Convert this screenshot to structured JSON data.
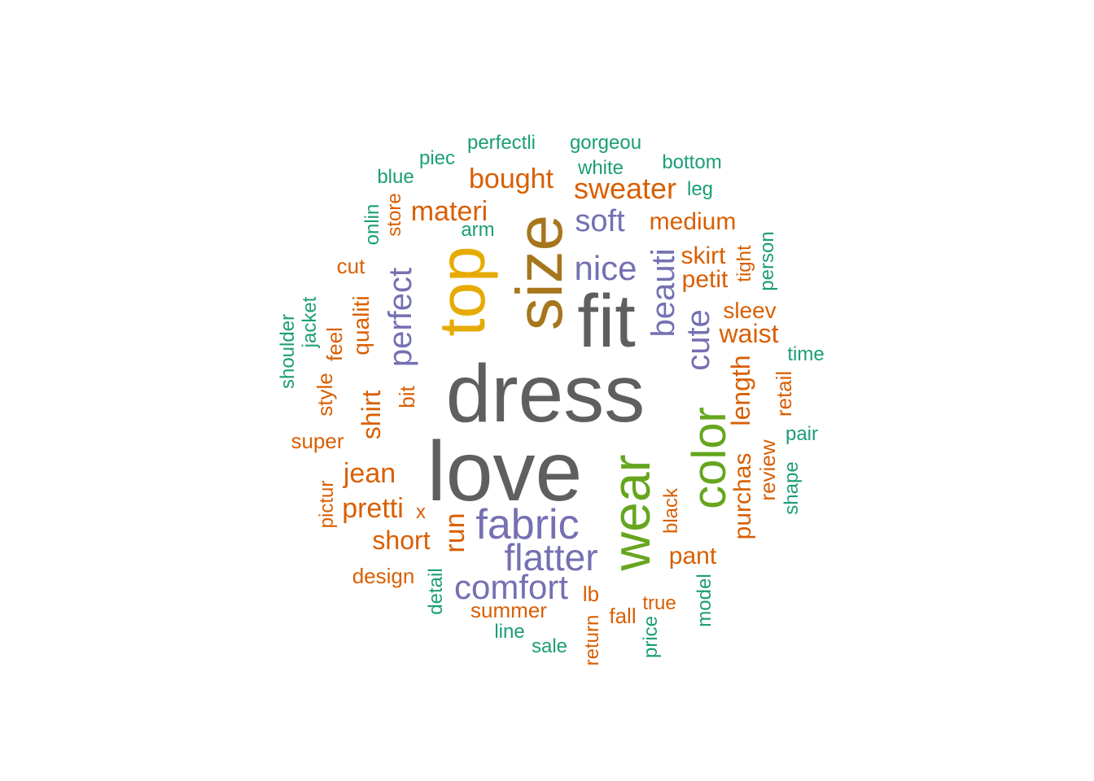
{
  "palette": {
    "gray": "#5f5f5f",
    "teal": "#1b9e77",
    "orange": "#d95f02",
    "purple": "#7570b3",
    "green": "#66a61e",
    "gold": "#e6ab02",
    "brown": "#a6761d"
  },
  "words": [
    {
      "text": "dress",
      "color": "gray"
    },
    {
      "text": "love",
      "color": "gray"
    },
    {
      "text": "fit",
      "color": "gray"
    },
    {
      "text": "size",
      "color": "brown"
    },
    {
      "text": "top",
      "color": "gold"
    },
    {
      "text": "wear",
      "color": "green"
    },
    {
      "text": "color",
      "color": "green"
    },
    {
      "text": "fabric",
      "color": "purple"
    },
    {
      "text": "flatter",
      "color": "purple"
    },
    {
      "text": "comfort",
      "color": "purple"
    },
    {
      "text": "nice",
      "color": "purple"
    },
    {
      "text": "perfect",
      "color": "purple"
    },
    {
      "text": "beauti",
      "color": "purple"
    },
    {
      "text": "cute",
      "color": "purple"
    },
    {
      "text": "soft",
      "color": "purple"
    },
    {
      "text": "bought",
      "color": "orange"
    },
    {
      "text": "sweater",
      "color": "orange"
    },
    {
      "text": "materi",
      "color": "orange"
    },
    {
      "text": "medium",
      "color": "orange"
    },
    {
      "text": "skirt",
      "color": "orange"
    },
    {
      "text": "petit",
      "color": "orange"
    },
    {
      "text": "waist",
      "color": "orange"
    },
    {
      "text": "sleev",
      "color": "orange"
    },
    {
      "text": "length",
      "color": "orange"
    },
    {
      "text": "purchas",
      "color": "orange"
    },
    {
      "text": "jean",
      "color": "orange"
    },
    {
      "text": "pretti",
      "color": "orange"
    },
    {
      "text": "short",
      "color": "orange"
    },
    {
      "text": "shirt",
      "color": "orange"
    },
    {
      "text": "qualiti",
      "color": "orange"
    },
    {
      "text": "run",
      "color": "orange"
    },
    {
      "text": "pant",
      "color": "orange"
    },
    {
      "text": "review",
      "color": "orange"
    },
    {
      "text": "retail",
      "color": "orange"
    },
    {
      "text": "bit",
      "color": "orange"
    },
    {
      "text": "cut",
      "color": "orange"
    },
    {
      "text": "feel",
      "color": "orange"
    },
    {
      "text": "store",
      "color": "orange"
    },
    {
      "text": "style",
      "color": "orange"
    },
    {
      "text": "super",
      "color": "orange"
    },
    {
      "text": "tight",
      "color": "orange"
    },
    {
      "text": "pictur",
      "color": "orange"
    },
    {
      "text": "design",
      "color": "orange"
    },
    {
      "text": "summer",
      "color": "orange"
    },
    {
      "text": "lb",
      "color": "orange"
    },
    {
      "text": "fall",
      "color": "orange"
    },
    {
      "text": "true",
      "color": "orange"
    },
    {
      "text": "black",
      "color": "orange"
    },
    {
      "text": "return",
      "color": "orange"
    },
    {
      "text": "x",
      "color": "orange"
    },
    {
      "text": "perfectli",
      "color": "teal"
    },
    {
      "text": "gorgeou",
      "color": "teal"
    },
    {
      "text": "piec",
      "color": "teal"
    },
    {
      "text": "bottom",
      "color": "teal"
    },
    {
      "text": "white",
      "color": "teal"
    },
    {
      "text": "blue",
      "color": "teal"
    },
    {
      "text": "leg",
      "color": "teal"
    },
    {
      "text": "onlin",
      "color": "teal"
    },
    {
      "text": "arm",
      "color": "teal"
    },
    {
      "text": "person",
      "color": "teal"
    },
    {
      "text": "jacket",
      "color": "teal"
    },
    {
      "text": "shoulder",
      "color": "teal"
    },
    {
      "text": "time",
      "color": "teal"
    },
    {
      "text": "pair",
      "color": "teal"
    },
    {
      "text": "shape",
      "color": "teal"
    },
    {
      "text": "detail",
      "color": "teal"
    },
    {
      "text": "model",
      "color": "teal"
    },
    {
      "text": "line",
      "color": "teal"
    },
    {
      "text": "sale",
      "color": "teal"
    },
    {
      "text": "price",
      "color": "teal"
    }
  ]
}
